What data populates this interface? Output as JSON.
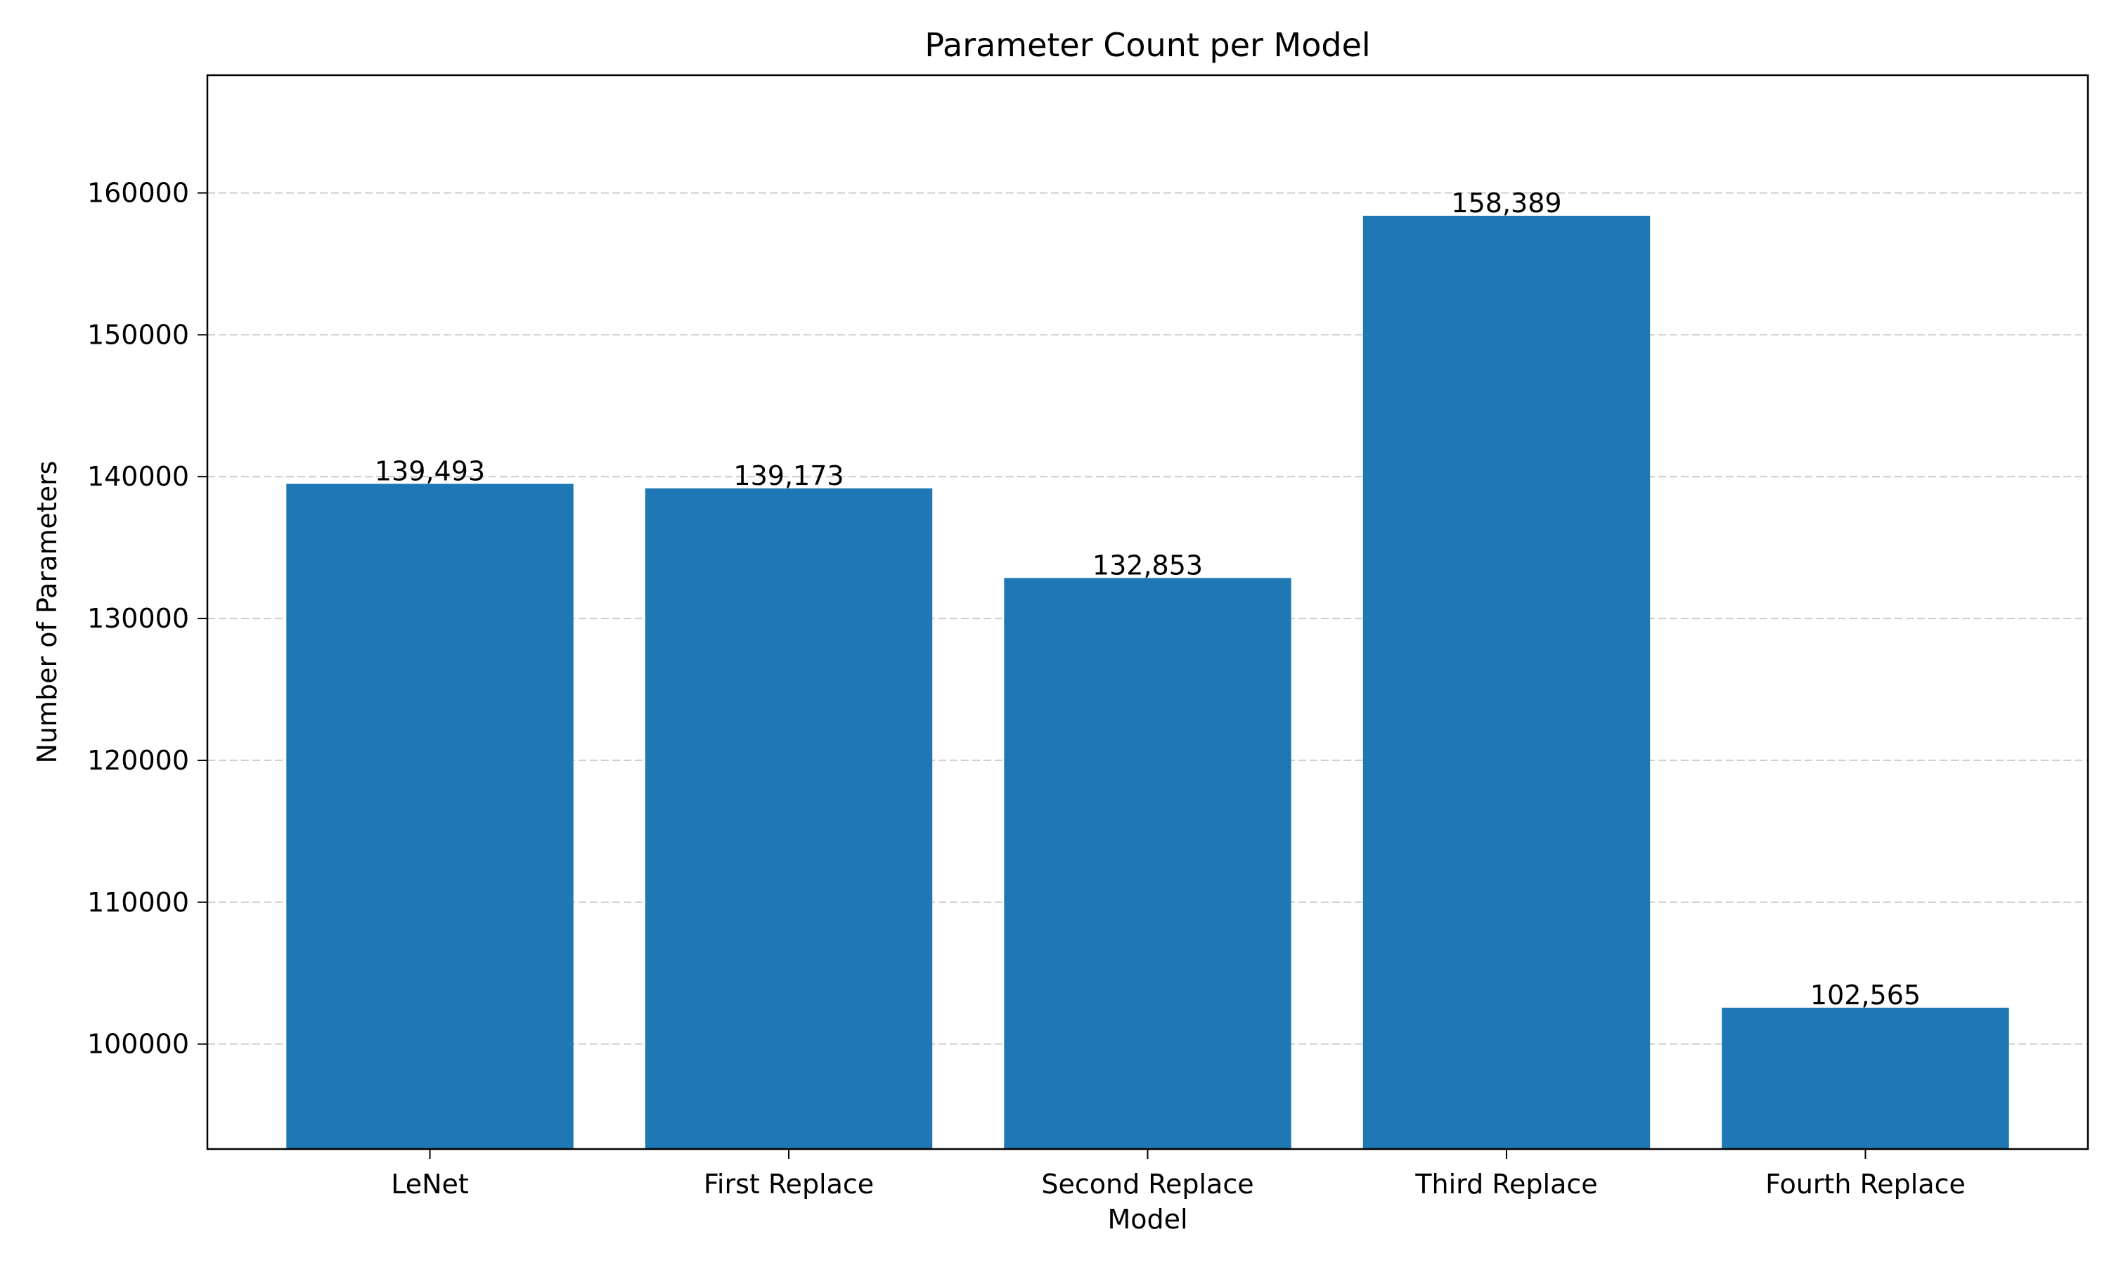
{
  "chart_data": {
    "type": "bar",
    "title": "Parameter Count per Model",
    "xlabel": "Model",
    "ylabel": "Number of Parameters",
    "categories": [
      "LeNet",
      "First Replace",
      "Second Replace",
      "Third Replace",
      "Fourth Replace"
    ],
    "values": [
      139493,
      139173,
      132853,
      158389,
      102565
    ],
    "data_labels": [
      "139,493",
      "139,173",
      "132,853",
      "158,389",
      "102,565"
    ],
    "ylim": [
      92600,
      168300
    ],
    "yticks": [
      100000,
      110000,
      120000,
      130000,
      140000,
      150000,
      160000
    ],
    "ytick_labels": [
      "100000",
      "110000",
      "120000",
      "130000",
      "140000",
      "150000",
      "160000"
    ],
    "grid": "y-dashed",
    "legend": "none",
    "bar_color": "#1f77b4",
    "grid_color": "#cccccc"
  }
}
